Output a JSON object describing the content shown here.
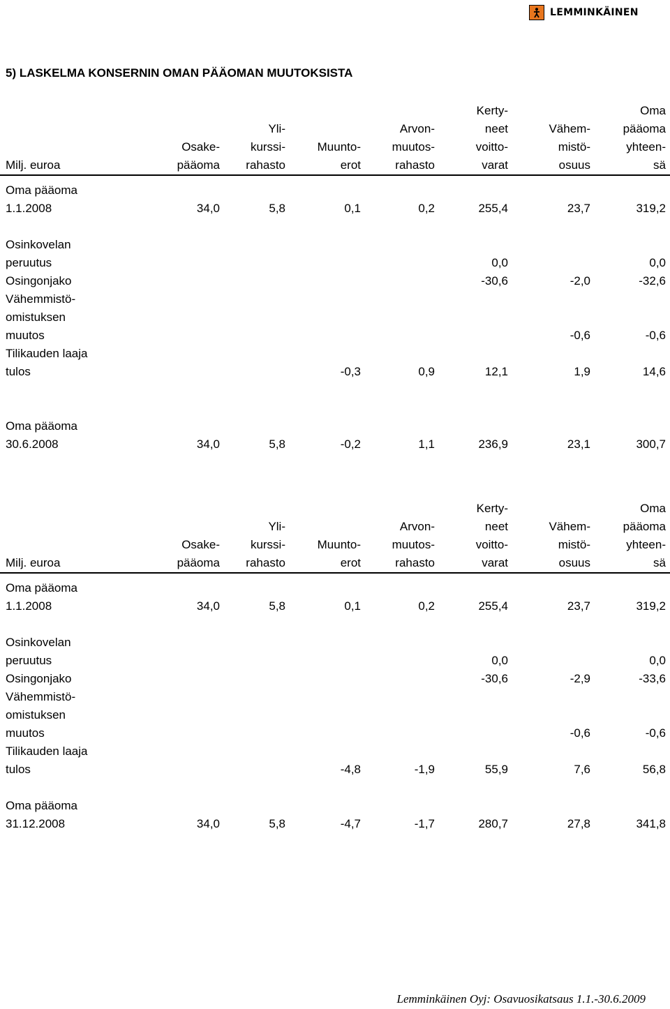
{
  "logo": {
    "text": "LEMMINKÄINEN"
  },
  "title": "5) LASKELMA KONSERNIN OMAN PÄÄOMAN MUUTOKSISTA",
  "tables": [
    {
      "header": [
        [
          "",
          "",
          "",
          "",
          "",
          "Kerty-",
          "",
          "Oma"
        ],
        [
          "",
          "",
          "Yli-",
          "",
          "Arvon-",
          "neet",
          "Vähem-",
          "pääoma"
        ],
        [
          "",
          "Osake-",
          "kurssi-",
          "Muunto-",
          "muutos-",
          "voitto-",
          "mistö-",
          "yhteen-"
        ],
        [
          "Milj. euroa",
          "pääoma",
          "rahasto",
          "erot",
          "rahasto",
          "varat",
          "osuus",
          "sä"
        ]
      ],
      "rows": [
        [
          "Oma pääoma",
          "",
          "",
          "",
          "",
          "",
          "",
          ""
        ],
        [
          "1.1.2008",
          "34,0",
          "5,8",
          "0,1",
          "0,2",
          "255,4",
          "23,7",
          "319,2"
        ],
        [
          "",
          "",
          "",
          "",
          "",
          "",
          "",
          ""
        ],
        [
          "Osinkovelan",
          "",
          "",
          "",
          "",
          "",
          "",
          ""
        ],
        [
          "peruutus",
          "",
          "",
          "",
          "",
          "0,0",
          "",
          "0,0"
        ],
        [
          "Osingonjako",
          "",
          "",
          "",
          "",
          "-30,6",
          "-2,0",
          "-32,6"
        ],
        [
          "Vähemmistö-",
          "",
          "",
          "",
          "",
          "",
          "",
          ""
        ],
        [
          "omistuksen",
          "",
          "",
          "",
          "",
          "",
          "",
          ""
        ],
        [
          "muutos",
          "",
          "",
          "",
          "",
          "",
          "-0,6",
          "-0,6"
        ],
        [
          "Tilikauden laaja",
          "",
          "",
          "",
          "",
          "",
          "",
          ""
        ],
        [
          "tulos",
          "",
          "",
          "-0,3",
          "0,9",
          "12,1",
          "1,9",
          "14,6"
        ],
        [
          "",
          "",
          "",
          "",
          "",
          "",
          "",
          ""
        ],
        [
          "",
          "",
          "",
          "",
          "",
          "",
          "",
          ""
        ],
        [
          "Oma pääoma",
          "",
          "",
          "",
          "",
          "",
          "",
          ""
        ],
        [
          "30.6.2008",
          "34,0",
          "5,8",
          "-0,2",
          "1,1",
          "236,9",
          "23,1",
          "300,7"
        ]
      ]
    },
    {
      "header": [
        [
          "",
          "",
          "",
          "",
          "",
          "Kerty-",
          "",
          "Oma"
        ],
        [
          "",
          "",
          "Yli-",
          "",
          "Arvon-",
          "neet",
          "Vähem-",
          "pääoma"
        ],
        [
          "",
          "Osake-",
          "kurssi-",
          "Muunto-",
          "muutos-",
          "voitto-",
          "mistö-",
          "yhteen-"
        ],
        [
          "Milj. euroa",
          "pääoma",
          "rahasto",
          "erot",
          "rahasto",
          "varat",
          "osuus",
          "sä"
        ]
      ],
      "rows": [
        [
          "Oma pääoma",
          "",
          "",
          "",
          "",
          "",
          "",
          ""
        ],
        [
          "1.1.2008",
          "34,0",
          "5,8",
          "0,1",
          "0,2",
          "255,4",
          "23,7",
          "319,2"
        ],
        [
          "",
          "",
          "",
          "",
          "",
          "",
          "",
          ""
        ],
        [
          "Osinkovelan",
          "",
          "",
          "",
          "",
          "",
          "",
          ""
        ],
        [
          "peruutus",
          "",
          "",
          "",
          "",
          "0,0",
          "",
          "0,0"
        ],
        [
          "Osingonjako",
          "",
          "",
          "",
          "",
          "-30,6",
          "-2,9",
          "-33,6"
        ],
        [
          "Vähemmistö-",
          "",
          "",
          "",
          "",
          "",
          "",
          ""
        ],
        [
          "omistuksen",
          "",
          "",
          "",
          "",
          "",
          "",
          ""
        ],
        [
          "muutos",
          "",
          "",
          "",
          "",
          "",
          "-0,6",
          "-0,6"
        ],
        [
          "Tilikauden laaja",
          "",
          "",
          "",
          "",
          "",
          "",
          ""
        ],
        [
          "tulos",
          "",
          "",
          "-4,8",
          "-1,9",
          "55,9",
          "7,6",
          "56,8"
        ],
        [
          "",
          "",
          "",
          "",
          "",
          "",
          "",
          ""
        ],
        [
          "Oma pääoma",
          "",
          "",
          "",
          "",
          "",
          "",
          ""
        ],
        [
          "31.12.2008",
          "34,0",
          "5,8",
          "-4,7",
          "-1,7",
          "280,7",
          "27,8",
          "341,8"
        ]
      ]
    }
  ],
  "footer": "Lemminkäinen Oyj: Osavuosikatsaus 1.1.-30.6.2009"
}
